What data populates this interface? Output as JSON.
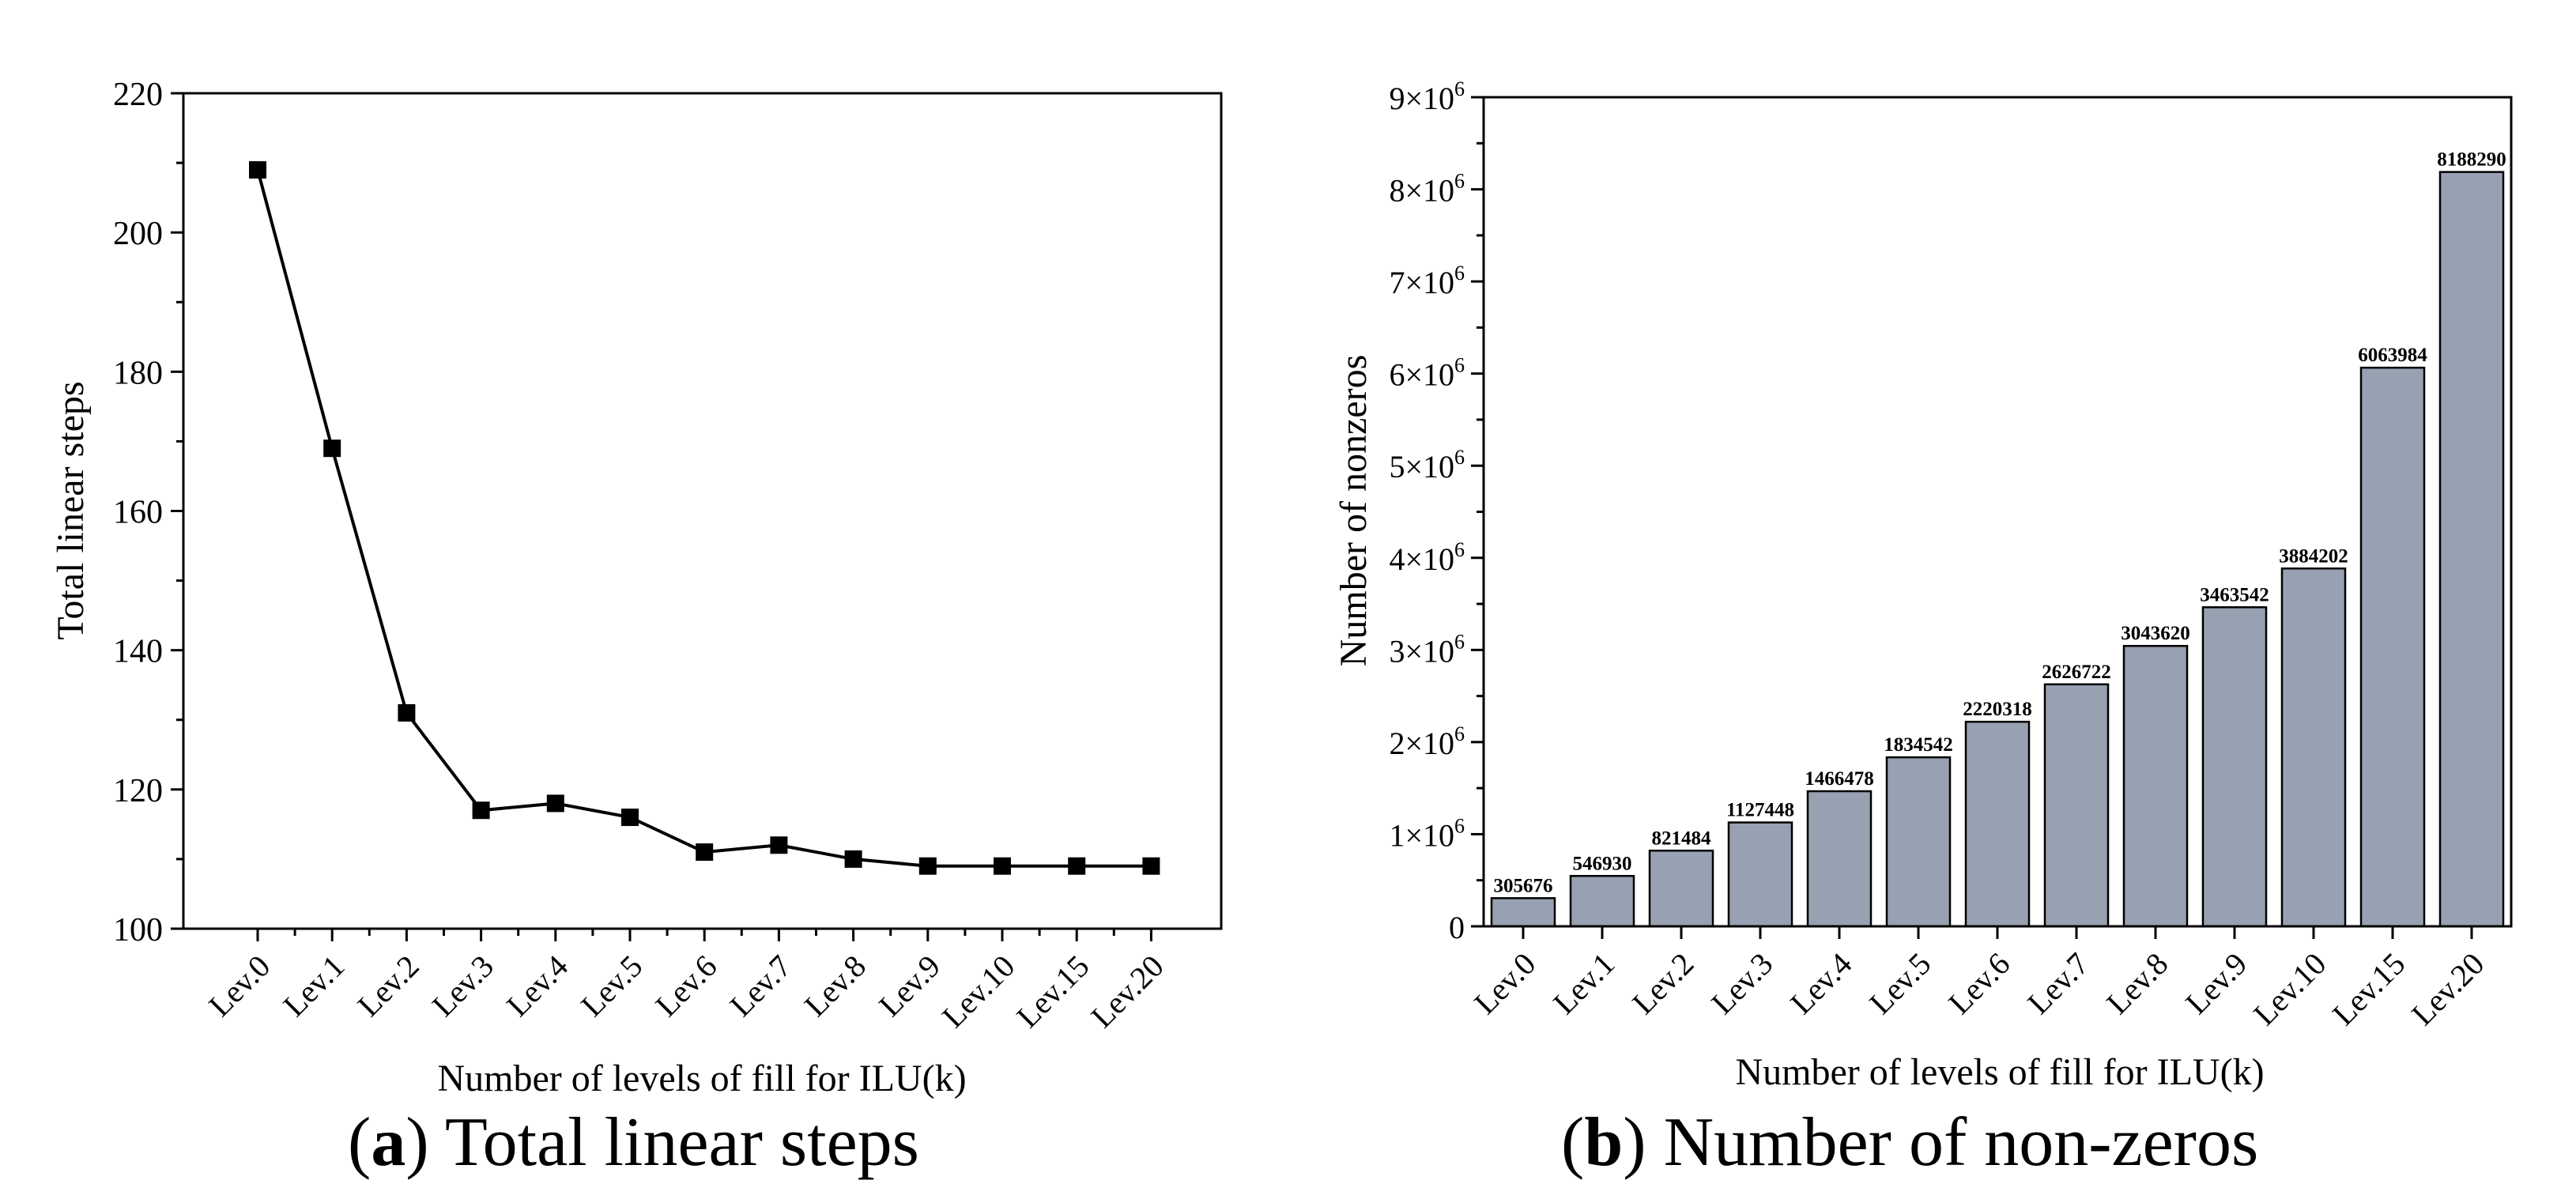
{
  "captions": {
    "a": {
      "letter": "a",
      "text": "Total linear steps"
    },
    "b": {
      "letter": "b",
      "text": "Number of non-zeros"
    }
  },
  "chart_data": [
    {
      "type": "line",
      "categories": [
        "Lev.0",
        "Lev.1",
        "Lev.2",
        "Lev.3",
        "Lev.4",
        "Lev.5",
        "Lev.6",
        "Lev.7",
        "Lev.8",
        "Lev.9",
        "Lev.10",
        "Lev.15",
        "Lev.20"
      ],
      "values": [
        209,
        169,
        131,
        117,
        118,
        116,
        111,
        112,
        110,
        109,
        109,
        109,
        109
      ],
      "xlabel": "Number of levels of fill for ILU(k)",
      "ylabel": "Total linear steps",
      "ylim": [
        100,
        220
      ],
      "yticks": [
        100,
        120,
        140,
        160,
        180,
        200,
        220
      ],
      "marker": "square",
      "color": "#000000",
      "grid": false
    },
    {
      "type": "bar",
      "categories": [
        "Lev.0",
        "Lev.1",
        "Lev.2",
        "Lev.3",
        "Lev.4",
        "Lev.5",
        "Lev.6",
        "Lev.7",
        "Lev.8",
        "Lev.9",
        "Lev.10",
        "Lev.15",
        "Lev.20"
      ],
      "values": [
        305676,
        546930,
        821484,
        1127448,
        1466478,
        1834542,
        2220318,
        2626722,
        3043620,
        3463542,
        3884202,
        6063984,
        8188290
      ],
      "data_labels": [
        "305676",
        "546930",
        "821484",
        "1127448",
        "1466478",
        "1834542",
        "2220318",
        "2626722",
        "3043620",
        "3463542",
        "3884202",
        "6063984",
        "8188290"
      ],
      "xlabel": "Number of levels of fill for ILU(k)",
      "ylabel": "Number of nonzeros",
      "ylim": [
        0,
        9000000
      ],
      "yticks": [
        {
          "value": 0,
          "mantissa": "0"
        },
        {
          "value": 1000000,
          "mantissa": "1×10",
          "exp": "6"
        },
        {
          "value": 2000000,
          "mantissa": "2×10",
          "exp": "6"
        },
        {
          "value": 3000000,
          "mantissa": "3×10",
          "exp": "6"
        },
        {
          "value": 4000000,
          "mantissa": "4×10",
          "exp": "6"
        },
        {
          "value": 5000000,
          "mantissa": "5×10",
          "exp": "6"
        },
        {
          "value": 6000000,
          "mantissa": "6×10",
          "exp": "6"
        },
        {
          "value": 7000000,
          "mantissa": "7×10",
          "exp": "6"
        },
        {
          "value": 8000000,
          "mantissa": "8×10",
          "exp": "6"
        },
        {
          "value": 9000000,
          "mantissa": "9×10",
          "exp": "6"
        }
      ],
      "bar_color": "#98a1b1",
      "grid": false
    }
  ]
}
